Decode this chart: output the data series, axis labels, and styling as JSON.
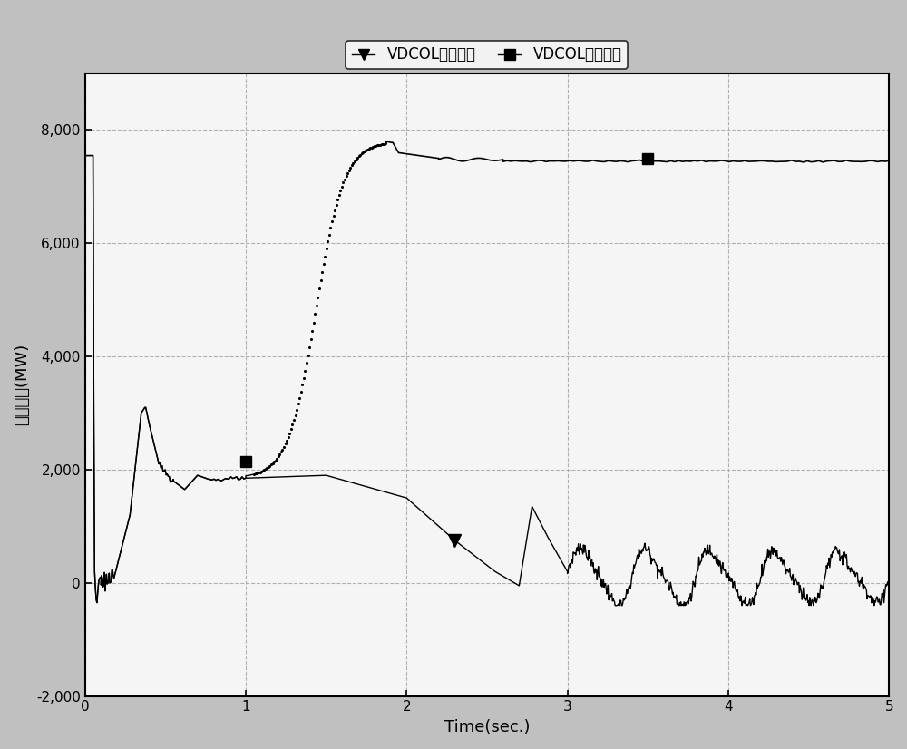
{
  "xlabel": "Time(sec.)",
  "ylabel": "直流功率(MW)",
  "xlim": [
    0,
    5
  ],
  "ylim": [
    -2000,
    9000
  ],
  "yticks": [
    -2000,
    0,
    2000,
    4000,
    6000,
    8000
  ],
  "xticks": [
    0,
    1,
    2,
    3,
    4,
    5
  ],
  "legend_label1": "VDCOL初始参数",
  "legend_label2": "VDCOL优化参数",
  "plot_bg": "#f0f0f0",
  "fig_bg": "#c8c8c8",
  "line_color": "#000000",
  "grid_color": "#aaaaaa",
  "marker_tri_x": 2.3,
  "marker_tri_y": 750,
  "marker_sq1_x": 1.0,
  "marker_sq1_y": 2150,
  "marker_sq2_x": 3.5,
  "marker_sq2_y": 7500,
  "dot_start": 1.05,
  "dot_end": 1.87
}
